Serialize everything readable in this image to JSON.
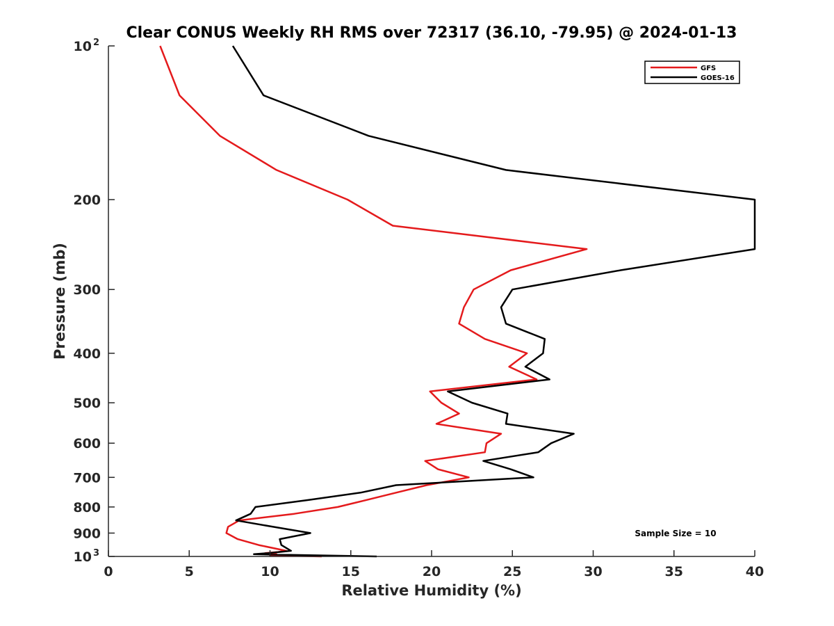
{
  "chart_data": {
    "type": "line",
    "title": "Clear CONUS Weekly RH RMS over 72317 (36.10, -79.95) @ 2024-01-13",
    "xlabel": "Relative Humidity (%)",
    "ylabel": "Pressure (mb)",
    "xlim": [
      0,
      40
    ],
    "ylim": [
      100,
      1000
    ],
    "y_scale": "log",
    "y_reversed": true,
    "grid": false,
    "legend_position": "top-right",
    "x_ticks": [
      "0",
      "5",
      "10",
      "15",
      "20",
      "25",
      "30",
      "35",
      "40"
    ],
    "y_ticks": [
      {
        "value": 100,
        "base": "10",
        "exp": "2"
      },
      {
        "value": 200,
        "base": "200",
        "exp": ""
      },
      {
        "value": 300,
        "base": "300",
        "exp": ""
      },
      {
        "value": 400,
        "base": "400",
        "exp": ""
      },
      {
        "value": 500,
        "base": "500",
        "exp": ""
      },
      {
        "value": 600,
        "base": "600",
        "exp": ""
      },
      {
        "value": 700,
        "base": "700",
        "exp": ""
      },
      {
        "value": 800,
        "base": "800",
        "exp": ""
      },
      {
        "value": 900,
        "base": "900",
        "exp": ""
      },
      {
        "value": 1000,
        "base": "10",
        "exp": "3"
      }
    ],
    "series": [
      {
        "name": "GFS",
        "color": "#e41a1c",
        "points": [
          [
            3.2,
            100
          ],
          [
            4.4,
            125
          ],
          [
            6.9,
            150
          ],
          [
            10.4,
            175
          ],
          [
            14.8,
            200
          ],
          [
            17.6,
            225
          ],
          [
            29.6,
            250
          ],
          [
            24.9,
            275
          ],
          [
            22.6,
            300
          ],
          [
            22.0,
            325
          ],
          [
            21.7,
            350
          ],
          [
            23.3,
            375
          ],
          [
            25.9,
            400
          ],
          [
            24.8,
            425
          ],
          [
            26.5,
            450
          ],
          [
            19.9,
            475
          ],
          [
            20.6,
            500
          ],
          [
            21.7,
            525
          ],
          [
            20.3,
            550
          ],
          [
            24.3,
            575
          ],
          [
            23.4,
            600
          ],
          [
            23.3,
            625
          ],
          [
            19.6,
            650
          ],
          [
            20.4,
            675
          ],
          [
            22.3,
            700
          ],
          [
            19.7,
            725
          ],
          [
            17.8,
            750
          ],
          [
            16.0,
            775
          ],
          [
            14.2,
            800
          ],
          [
            11.5,
            825
          ],
          [
            8.1,
            850
          ],
          [
            7.4,
            875
          ],
          [
            7.3,
            900
          ],
          [
            8.0,
            925
          ],
          [
            9.3,
            950
          ],
          [
            11.0,
            975
          ],
          [
            10.5,
            980
          ],
          [
            9.7,
            985
          ],
          [
            10.4,
            990
          ],
          [
            10.0,
            995
          ],
          [
            13.2,
            1000
          ]
        ]
      },
      {
        "name": "GOES-16",
        "color": "#000000",
        "points": [
          [
            7.7,
            100
          ],
          [
            9.6,
            125
          ],
          [
            16.1,
            150
          ],
          [
            24.6,
            175
          ],
          [
            40.0,
            200
          ],
          [
            40.0,
            250
          ],
          [
            31.7,
            275
          ],
          [
            25.0,
            300
          ],
          [
            24.3,
            325
          ],
          [
            24.6,
            350
          ],
          [
            27.0,
            375
          ],
          [
            26.9,
            400
          ],
          [
            25.8,
            425
          ],
          [
            27.3,
            450
          ],
          [
            21.0,
            475
          ],
          [
            22.5,
            500
          ],
          [
            24.7,
            525
          ],
          [
            24.6,
            550
          ],
          [
            28.8,
            575
          ],
          [
            27.4,
            600
          ],
          [
            26.6,
            625
          ],
          [
            23.2,
            650
          ],
          [
            24.9,
            675
          ],
          [
            26.3,
            700
          ],
          [
            17.8,
            725
          ],
          [
            15.6,
            750
          ],
          [
            12.4,
            775
          ],
          [
            9.1,
            800
          ],
          [
            8.8,
            825
          ],
          [
            7.9,
            850
          ],
          [
            10.2,
            875
          ],
          [
            12.5,
            900
          ],
          [
            10.6,
            925
          ],
          [
            10.7,
            950
          ],
          [
            11.3,
            975
          ],
          [
            9.9,
            985
          ],
          [
            9.0,
            990
          ],
          [
            16.6,
            1000
          ]
        ]
      }
    ],
    "annotation": "Sample Size = 10"
  }
}
